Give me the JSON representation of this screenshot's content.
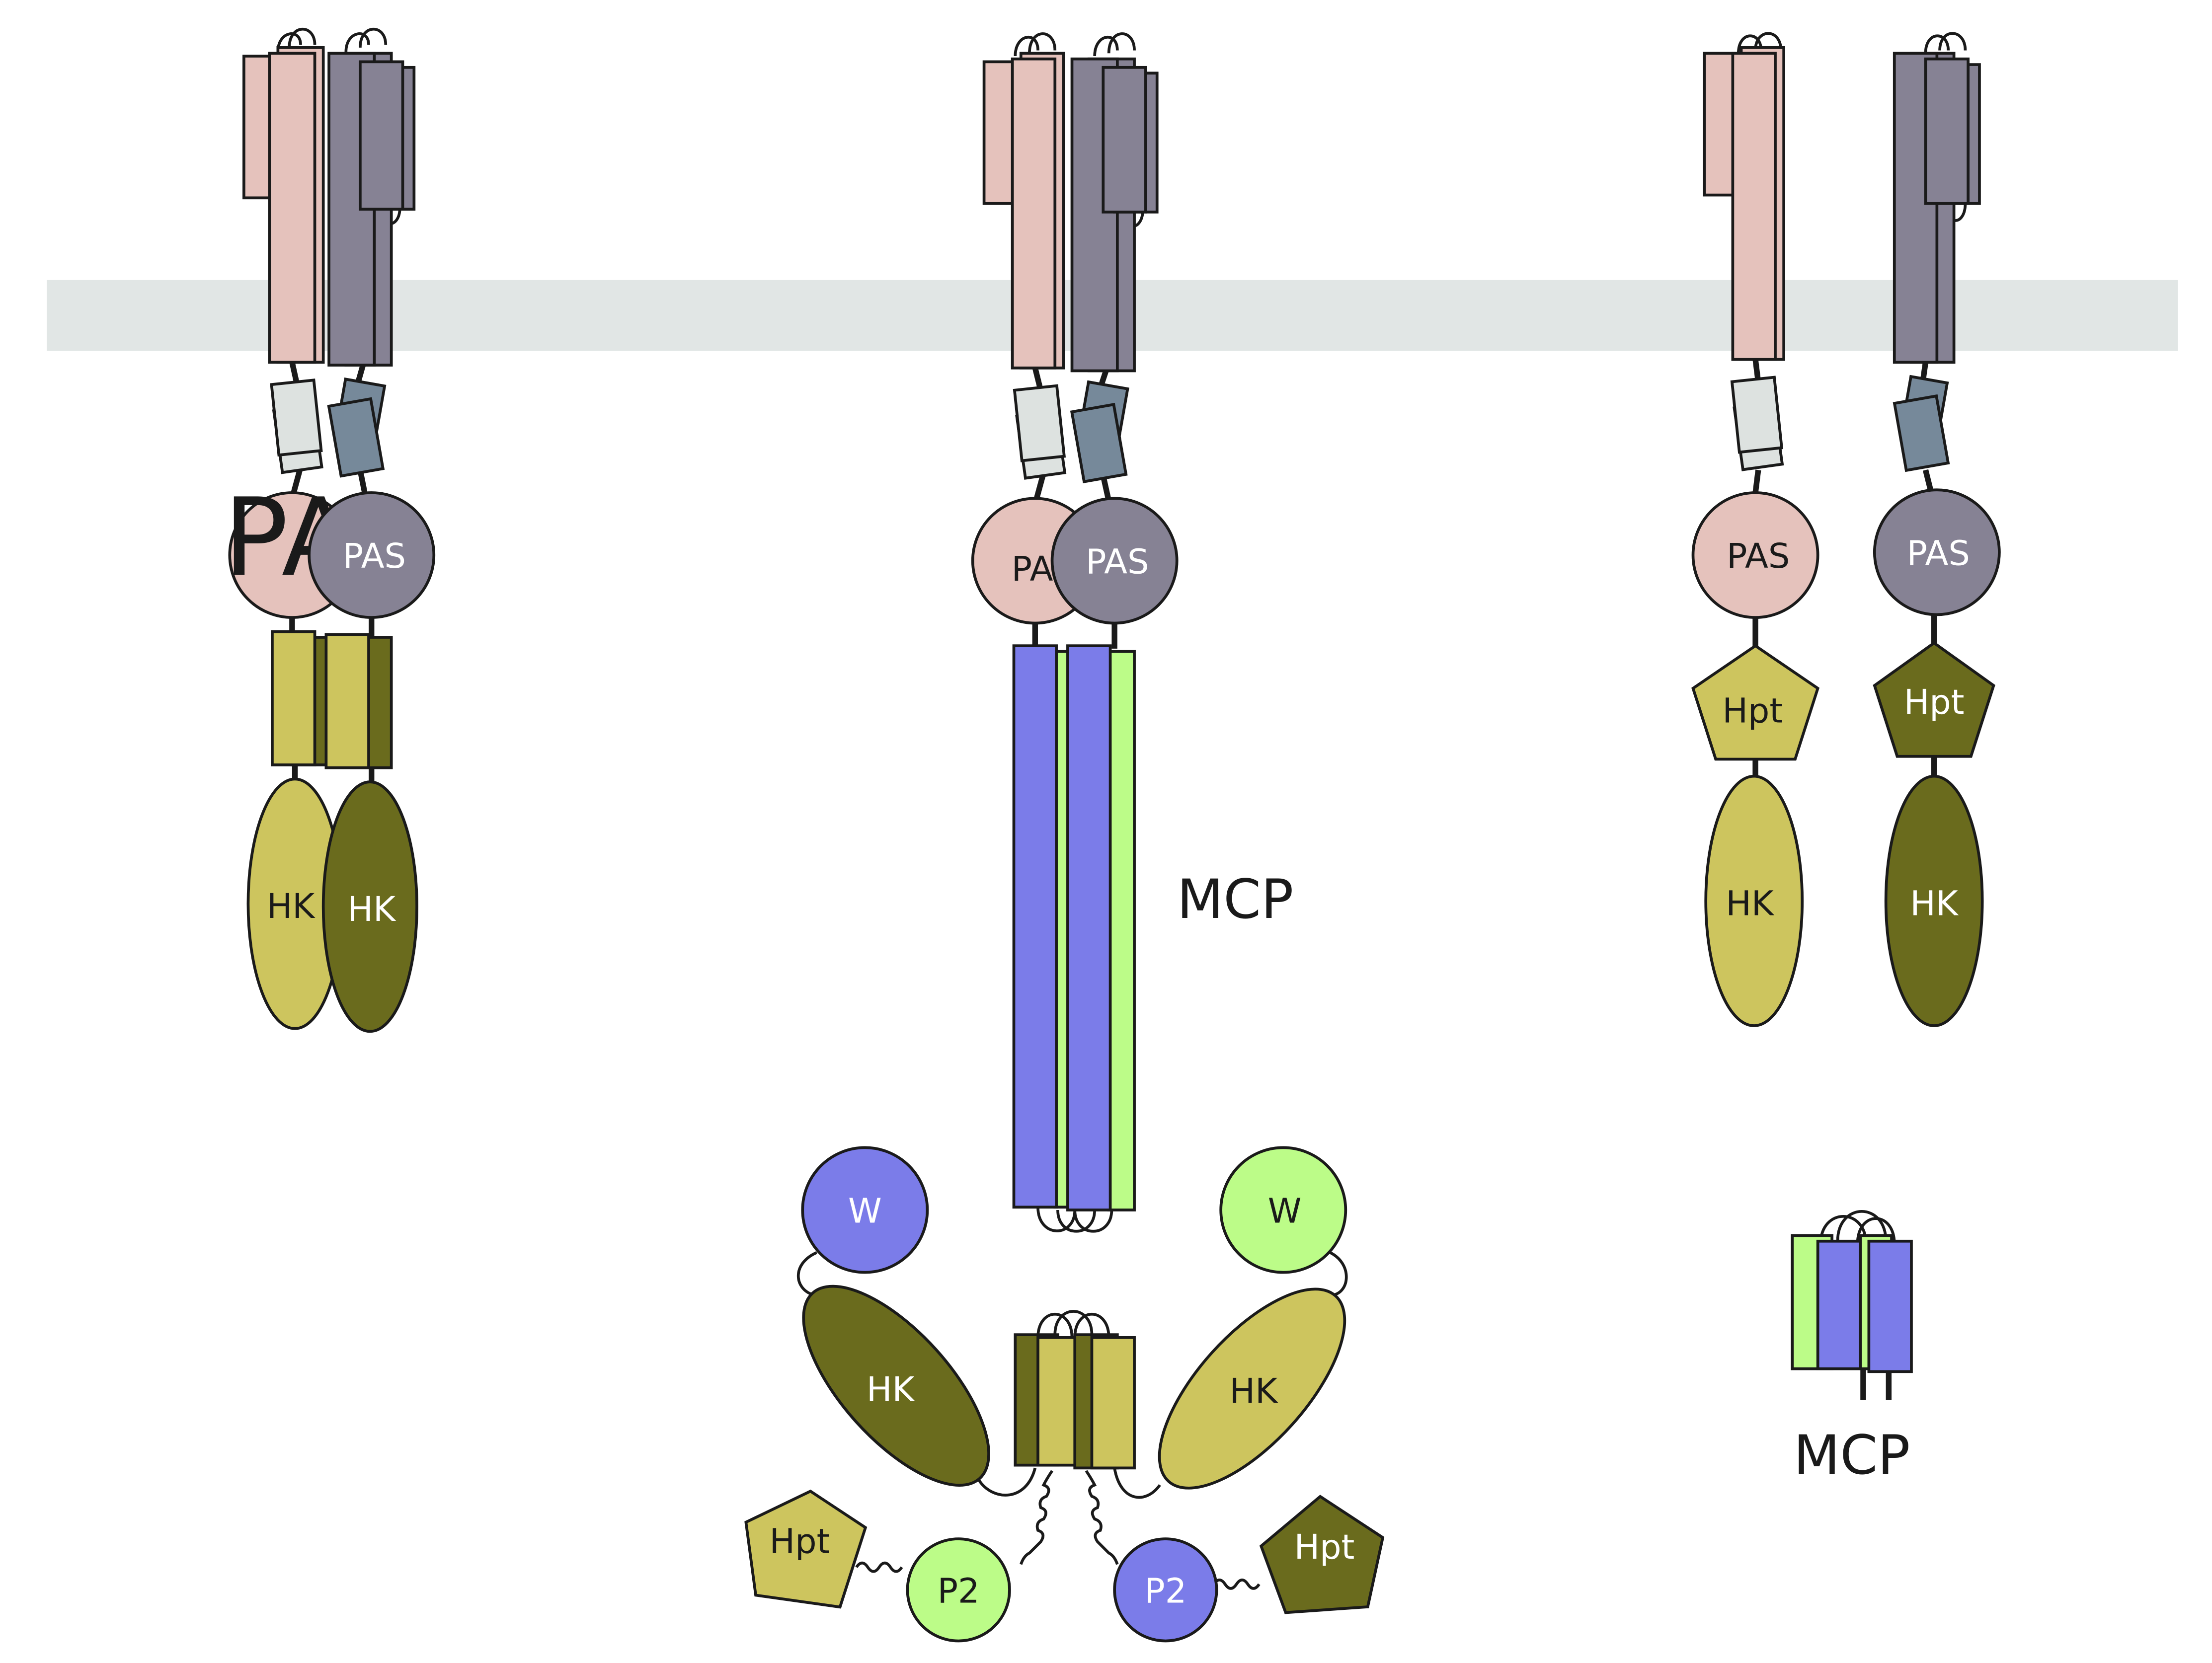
{
  "colors": {
    "membrane": "#e1e6e5",
    "pink": "#e5c2bc",
    "slate": "#868294",
    "paleBox": "#dde2e0",
    "steel": "#76899a",
    "yellowOlive": "#cdc55e",
    "darkOlive": "#6a6b1d",
    "blue": "#7b7ce9",
    "lightGreen": "#bcfc88",
    "outline": "#1a1a1a"
  },
  "labels": {
    "pas": "PAS",
    "pas_partial": "PA",
    "hk": "HK",
    "hpt": "Hpt",
    "w": "W",
    "p2": "P2",
    "mcp": "MCP"
  }
}
